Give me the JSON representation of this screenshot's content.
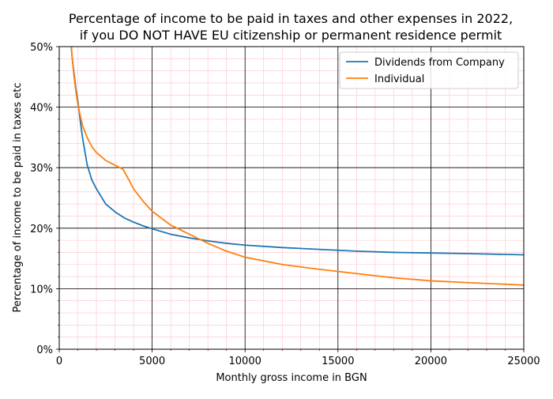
{
  "chart_data": {
    "type": "line",
    "title_lines": [
      "Percentage of income to be paid in taxes and other expenses in 2022,",
      "if you DO NOT HAVE EU citizenship or permanent residence permit"
    ],
    "xlabel": "Monthly gross income in BGN",
    "ylabel": "Percentage of income to be paid in taxes etc",
    "xlim": [
      0,
      25000
    ],
    "ylim": [
      0,
      50
    ],
    "xticks": [
      0,
      5000,
      10000,
      15000,
      20000,
      25000
    ],
    "xtick_labels": [
      "0",
      "5000",
      "10000",
      "15000",
      "20000",
      "25000"
    ],
    "yticks": [
      0,
      10,
      20,
      30,
      40,
      50
    ],
    "ytick_labels": [
      "0%",
      "10%",
      "20%",
      "30%",
      "40%",
      "50%"
    ],
    "grid": {
      "major": true,
      "minor": true,
      "major_color": "#000000",
      "minor_color": "#ffc0cb"
    },
    "legend_position": "top-right",
    "series": [
      {
        "name": "Dividends from Company",
        "color": "#1f77b4",
        "x": [
          650,
          700,
          800,
          900,
          1000,
          1100,
          1250,
          1500,
          1750,
          2000,
          2500,
          3000,
          3500,
          4000,
          4500,
          5000,
          6000,
          7000,
          8000,
          9000,
          10000,
          12000,
          14000,
          16000,
          18000,
          20000,
          22000,
          25000
        ],
        "y": [
          50.0,
          48.0,
          45.5,
          43.0,
          41.0,
          38.5,
          35.0,
          30.5,
          28.0,
          26.5,
          24.0,
          22.7,
          21.7,
          21.0,
          20.4,
          19.9,
          19.0,
          18.4,
          17.9,
          17.5,
          17.2,
          16.8,
          16.5,
          16.2,
          16.0,
          15.9,
          15.8,
          15.6
        ]
      },
      {
        "name": "Individual",
        "color": "#ff7f0e",
        "x": [
          650,
          700,
          800,
          900,
          1000,
          1100,
          1250,
          1500,
          1750,
          2000,
          2500,
          3000,
          3400,
          3500,
          4000,
          4500,
          5000,
          6000,
          7000,
          8000,
          9000,
          10000,
          12000,
          14000,
          16000,
          18000,
          20000,
          22000,
          25000
        ],
        "y": [
          50.0,
          48.0,
          45.0,
          42.5,
          40.5,
          39.0,
          37.0,
          35.0,
          33.5,
          32.5,
          31.2,
          30.4,
          29.8,
          29.4,
          26.5,
          24.5,
          22.8,
          20.5,
          19.0,
          17.5,
          16.2,
          15.2,
          14.0,
          13.2,
          12.5,
          11.8,
          11.3,
          11.0,
          10.6
        ]
      }
    ]
  }
}
